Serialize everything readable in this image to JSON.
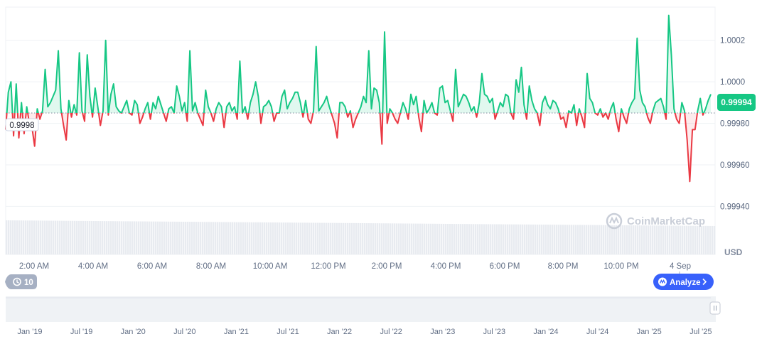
{
  "chart_data": {
    "type": "line",
    "currency": "USD",
    "reference_value": 0.99985,
    "reference_label": "0.9998",
    "current_price_label": "0.99994",
    "ylim": [
      0.99935,
      1.00036
    ],
    "y_ticks": [
      {
        "value": 1.0002,
        "label": "1.0002"
      },
      {
        "value": 1.0,
        "label": "1.0000"
      },
      {
        "value": 0.9998,
        "label": "0.99980"
      },
      {
        "value": 0.9996,
        "label": "0.99960"
      },
      {
        "value": 0.9994,
        "label": "0.99940"
      }
    ],
    "x_ticks": [
      "2:00 AM",
      "4:00 AM",
      "6:00 AM",
      "8:00 AM",
      "10:00 AM",
      "12:00 PM",
      "2:00 PM",
      "4:00 PM",
      "6:00 PM",
      "8:00 PM",
      "10:00 PM",
      "4 Sep"
    ],
    "prices": [
      0.99977,
      0.99995,
      1.0,
      0.99974,
      0.99999,
      0.99973,
      0.9999,
      0.99975,
      0.99988,
      0.9998,
      0.99978,
      0.99969,
      0.99987,
      0.99982,
      0.99986,
      1.00006,
      0.99988,
      0.9999,
      0.99993,
      0.99996,
      1.00015,
      0.99987,
      0.99979,
      0.99972,
      0.99991,
      0.99983,
      0.99989,
      0.99984,
      1.00014,
      0.99986,
      0.99981,
      1.00013,
      0.99993,
      0.99983,
      0.99997,
      0.99988,
      0.99979,
      0.99986,
      1.0002,
      0.99984,
      0.99994,
      0.99999,
      0.99988,
      0.99986,
      0.99985,
      0.99988,
      0.99991,
      0.99985,
      0.99984,
      0.99991,
      0.99989,
      0.9998,
      0.99983,
      0.99987,
      0.9999,
      0.99982,
      0.9999,
      0.99987,
      0.99993,
      0.99989,
      0.99985,
      0.99981,
      0.99987,
      0.99988,
      0.99985,
      0.99998,
      0.99993,
      0.99986,
      0.9999,
      0.99981,
      1.00015,
      0.99986,
      0.9999,
      0.99985,
      0.99982,
      0.99979,
      0.99996,
      0.99988,
      0.99985,
      0.99981,
      0.99987,
      0.9999,
      0.99988,
      0.99978,
      0.99988,
      0.9999,
      0.99986,
      0.99988,
      0.99982,
      1.0001,
      0.99985,
      0.99988,
      0.99982,
      0.9999,
      0.99994,
      1.0,
      0.99993,
      0.9998,
      0.99988,
      0.99989,
      0.99991,
      0.99988,
      0.99981,
      0.99985,
      0.99985,
      0.99993,
      0.99996,
      0.99987,
      0.9999,
      0.99992,
      0.99995,
      0.99995,
      0.9999,
      0.99983,
      0.99991,
      0.99982,
      0.9998,
      0.99986,
      1.00017,
      0.99986,
      0.99988,
      0.9999,
      0.99993,
      0.99988,
      0.99984,
      0.9998,
      0.99973,
      0.9999,
      0.9999,
      0.99988,
      0.99983,
      0.99986,
      0.99978,
      0.99982,
      0.99985,
      0.99988,
      0.99993,
      0.9999,
      1.00015,
      0.99987,
      0.99997,
      0.99996,
      0.9999,
      0.9997,
      1.00024,
      0.9998,
      0.99987,
      0.99985,
      0.99982,
      0.9998,
      0.99985,
      0.9999,
      0.99987,
      0.99982,
      0.99994,
      0.99989,
      0.99993,
      0.99983,
      0.99976,
      0.99991,
      0.99985,
      0.99987,
      0.9999,
      0.99985,
      0.99984,
      0.99997,
      0.99998,
      0.9999,
      0.99991,
      0.99986,
      0.99981,
      1.00006,
      0.99988,
      0.99991,
      0.99994,
      0.99993,
      0.9999,
      0.99986,
      0.99988,
      0.99983,
      0.9999,
      1.00004,
      0.99994,
      0.99993,
      0.9999,
      0.99992,
      0.99982,
      0.99986,
      0.9999,
      0.99988,
      0.99994,
      0.99993,
      0.99985,
      0.99982,
      1.00001,
      0.99995,
      1.00007,
      0.99989,
      0.99982,
      0.99998,
      0.99991,
      0.99987,
      0.99985,
      0.99979,
      0.9999,
      0.99993,
      0.99989,
      0.99987,
      0.99991,
      0.9999,
      0.99987,
      0.99982,
      0.99983,
      0.99978,
      0.99986,
      0.99985,
      0.99989,
      0.99979,
      0.99987,
      0.99983,
      0.99978,
      1.00004,
      0.99992,
      0.9999,
      0.99985,
      0.99984,
      0.99987,
      0.99983,
      0.99985,
      0.99982,
      0.99987,
      0.9999,
      0.99982,
      0.99976,
      0.99987,
      0.99983,
      0.9998,
      0.99987,
      0.9999,
      0.99992,
      1.00021,
      0.99996,
      0.9999,
      0.99988,
      0.99983,
      0.9998,
      0.99986,
      0.9999,
      0.99991,
      0.99992,
      0.99988,
      0.99982,
      1.00032,
      1.00013,
      0.99987,
      0.99982,
      0.9998,
      0.9999,
      0.99986,
      0.99972,
      0.99952,
      0.99977,
      0.99977,
      0.99986,
      0.99992,
      0.99984,
      0.99987,
      0.99991,
      0.99994
    ],
    "navigator_ticks": [
      "Jan '19",
      "Jul '19",
      "Jan '20",
      "Jul '20",
      "Jan '21",
      "Jul '21",
      "Jan '22",
      "Jul '22",
      "Jan '23",
      "Jul '23",
      "Jan '24",
      "Jul '24",
      "Jan '25",
      "Jul '25"
    ]
  },
  "watermark": "CoinMarketCap",
  "history_badge": {
    "icon": "history-icon",
    "count": "10"
  },
  "analyze_button": {
    "label": "Analyze",
    "icon": "coinmarketcap-logo-icon",
    "chevron": "chevron-right-icon"
  },
  "colors": {
    "up": "#16c784",
    "down": "#ea3943",
    "accent": "#3861fb",
    "grid": "#eff2f5"
  }
}
